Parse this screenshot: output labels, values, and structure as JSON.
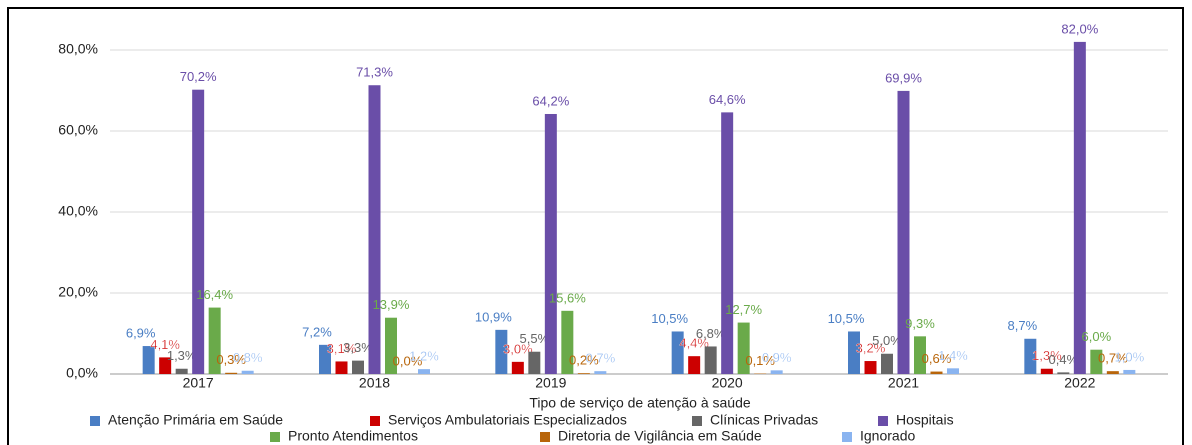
{
  "chart_data": {
    "type": "bar",
    "x_label": "Tipo de serviço de atenção à saúde",
    "categories": [
      "2017",
      "2018",
      "2019",
      "2020",
      "2021",
      "2022"
    ],
    "series": [
      {
        "name": "Atenção Primária em Saúde",
        "color": "#4a7ec4",
        "values": [
          6.9,
          7.2,
          10.9,
          10.5,
          10.5,
          8.7
        ],
        "value_labels": [
          "6,9%",
          "7,2%",
          "10,9%",
          "10,5%",
          "10,5%",
          "8,7%"
        ]
      },
      {
        "name": "Serviços Ambulatoriais Especializados",
        "color": "#cc0000",
        "values": [
          4.1,
          3.1,
          3.0,
          4.4,
          3.2,
          1.3
        ],
        "value_labels": [
          "4,1%",
          "3,1%",
          "3,0%",
          "4,4%",
          "3,2%",
          "1,3%"
        ]
      },
      {
        "name": "Clínicas Privadas",
        "color": "#666666",
        "values": [
          1.3,
          3.3,
          5.5,
          6.8,
          5.0,
          0.4
        ],
        "value_labels": [
          "1,3%",
          "3,3%",
          "5,5%",
          "6,8%",
          "5,0%",
          "0,4%"
        ]
      },
      {
        "name": "Hospitais",
        "color": "#6a4ea8",
        "values": [
          70.2,
          71.3,
          64.2,
          64.6,
          69.9,
          82.0
        ],
        "value_labels": [
          "70,2%",
          "71,3%",
          "64,2%",
          "64,6%",
          "69,9%",
          "82,0%"
        ]
      },
      {
        "name": "Pronto Atendimentos",
        "color": "#6aaa4a",
        "values": [
          16.4,
          13.9,
          15.6,
          12.7,
          9.3,
          6.0
        ],
        "value_labels": [
          "16,4%",
          "13,9%",
          "15,6%",
          "12,7%",
          "9,3%",
          "6,0%"
        ]
      },
      {
        "name": "Diretoria de Vigilância em Saúde",
        "color": "#b8650a",
        "values": [
          0.3,
          0.0,
          0.2,
          0.1,
          0.6,
          0.7
        ],
        "value_labels": [
          "0,3%",
          "0,0%",
          "0,2%",
          "0,1%",
          "0,6%",
          "0,7%"
        ]
      },
      {
        "name": "Ignorado",
        "color": "#8ab4f0",
        "values": [
          0.8,
          1.2,
          0.7,
          0.9,
          1.4,
          1.0
        ],
        "value_labels": [
          "0,8%",
          "1,2%",
          "0,7%",
          "0,9%",
          "1,4%",
          "1,0%"
        ]
      }
    ],
    "ylim": [
      0,
      82
    ],
    "yticks": [
      {
        "value": 0,
        "label": "0,0%"
      },
      {
        "value": 20,
        "label": "20,0%"
      },
      {
        "value": 40,
        "label": "40,0%"
      },
      {
        "value": 60,
        "label": "60,0%"
      },
      {
        "value": 80,
        "label": "80,0%"
      }
    ],
    "grid": true
  }
}
